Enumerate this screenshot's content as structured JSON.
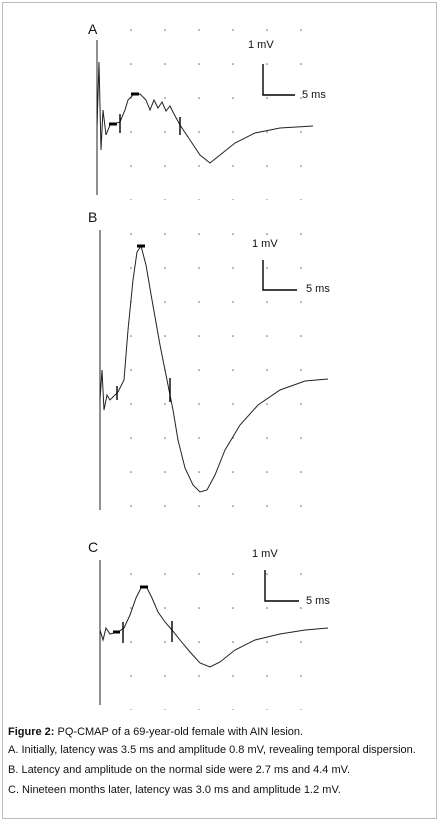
{
  "panels": [
    {
      "label": "A",
      "amplitude_scale": "1 mV",
      "time_scale": "5 ms"
    },
    {
      "label": "B",
      "amplitude_scale": "1 mV",
      "time_scale": "5 ms"
    },
    {
      "label": "C",
      "amplitude_scale": "1 mV",
      "time_scale": "5 ms"
    }
  ],
  "caption": {
    "title": "Figure 2:",
    "text": "PQ-CMAP of a 69-year-old female with AIN lesion.",
    "items": [
      "A. Initially, latency was 3.5 ms and amplitude 0.8 mV, revealing temporal dispersion.",
      "B. Latency and amplitude on the normal side were 2.7 ms and 4.4 mV.",
      "C. Nineteen months later, latency was 3.0 ms and amplitude 1.2 mV."
    ]
  }
}
